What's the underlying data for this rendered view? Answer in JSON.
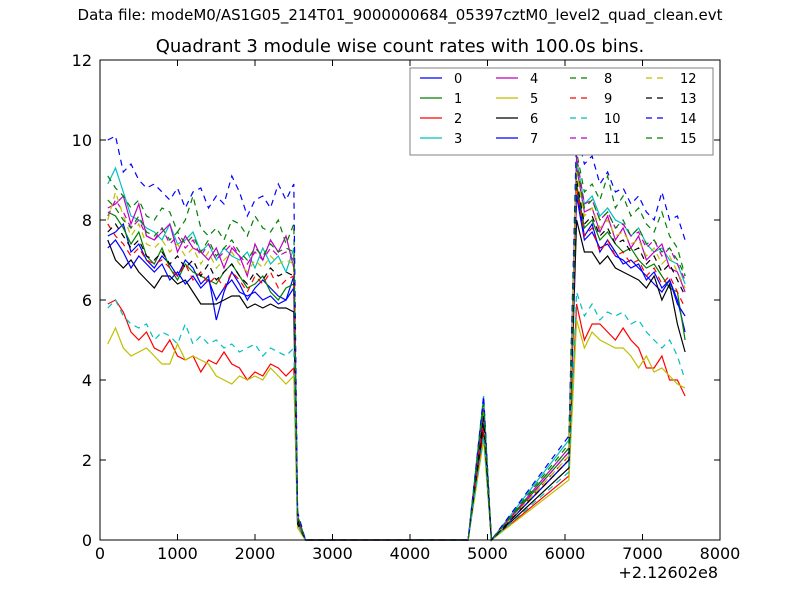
{
  "figure": {
    "suptitle": "Data file: modeM0/AS1G05_214T01_9000000684_05397cztM0_level2_quad_clean.evt",
    "title": "Quadrant 3 module wise count rates with 100.0s bins."
  },
  "chart_data": {
    "type": "line",
    "title": "Quadrant 3 module wise count rates with 100.0s bins.",
    "xlabel": "",
    "ylabel": "",
    "xlim": [
      0,
      8000
    ],
    "ylim": [
      0,
      12
    ],
    "x_offset_label": "+2.12602e8",
    "xticks": [
      0,
      1000,
      2000,
      3000,
      4000,
      5000,
      6000,
      7000,
      8000
    ],
    "yticks": [
      0,
      2,
      4,
      6,
      8,
      10,
      12
    ],
    "grid": false,
    "legend": {
      "placement": "top-right",
      "columns": 4
    },
    "x_segments": {
      "first": [
        100,
        200,
        300,
        400,
        500,
        600,
        700,
        800,
        900,
        1000,
        1100,
        1200,
        1300,
        1400,
        1500,
        1600,
        1700,
        1800,
        1900,
        2000,
        2100,
        2200,
        2300,
        2400,
        2500,
        2550,
        2650,
        2750
      ],
      "zero_to_peak": [
        2850,
        4750,
        4950,
        5050
      ],
      "second": [
        5050,
        6050,
        6150,
        6250,
        6350,
        6450,
        6550,
        6650,
        6750,
        6850,
        6950,
        7050,
        7150,
        7250,
        7350,
        7450,
        7550
      ]
    },
    "series": [
      {
        "name": "0",
        "color": "#0000ff",
        "dash": "solid",
        "first": [
          7.6,
          7.7,
          7.9,
          7.2,
          7.4,
          7.0,
          6.8,
          7.1,
          6.9,
          6.6,
          7.0,
          6.8,
          6.4,
          6.6,
          5.5,
          6.2,
          6.7,
          6.4,
          6.0,
          6.3,
          6.5,
          6.3,
          6.1,
          6.0,
          6.6,
          0.6,
          0.0,
          0.0
        ],
        "peak": 3.3,
        "second": [
          0.0,
          2.0,
          8.8,
          7.6,
          7.9,
          7.2,
          7.5,
          7.2,
          6.9,
          7.0,
          6.8,
          6.6,
          6.4,
          6.2,
          6.5,
          6.0,
          5.2
        ]
      },
      {
        "name": "1",
        "color": "#008000",
        "dash": "solid",
        "first": [
          8.2,
          8.1,
          7.8,
          7.4,
          7.7,
          7.1,
          6.9,
          7.3,
          6.8,
          6.5,
          6.9,
          6.7,
          6.6,
          6.5,
          6.4,
          6.7,
          6.9,
          6.6,
          6.3,
          6.4,
          6.6,
          6.2,
          6.0,
          6.3,
          6.4,
          0.5,
          0.0,
          0.0
        ],
        "peak": 3.0,
        "second": [
          0.0,
          2.2,
          8.9,
          7.8,
          8.0,
          7.5,
          7.7,
          7.4,
          7.2,
          7.3,
          7.0,
          6.8,
          6.9,
          6.6,
          6.3,
          6.2,
          5.0
        ]
      },
      {
        "name": "2",
        "color": "#ff0000",
        "dash": "solid",
        "first": [
          5.9,
          6.0,
          5.7,
          5.2,
          5.0,
          5.2,
          4.8,
          4.7,
          5.0,
          4.6,
          4.5,
          4.6,
          4.2,
          4.5,
          4.4,
          4.7,
          4.4,
          4.3,
          4.0,
          4.2,
          4.1,
          4.4,
          4.3,
          4.1,
          4.3,
          0.4,
          0.0,
          0.0
        ],
        "peak": 2.7,
        "second": [
          0.0,
          1.6,
          5.9,
          5.0,
          5.4,
          5.4,
          5.2,
          5.0,
          5.3,
          5.0,
          4.8,
          4.3,
          4.3,
          4.6,
          4.0,
          4.0,
          3.6
        ]
      },
      {
        "name": "3",
        "color": "#00bfbf",
        "dash": "solid",
        "first": [
          8.9,
          9.3,
          8.7,
          8.1,
          8.0,
          7.8,
          7.7,
          7.5,
          7.9,
          7.4,
          7.5,
          7.7,
          7.2,
          7.4,
          7.0,
          7.3,
          7.1,
          7.0,
          7.2,
          6.8,
          7.3,
          6.9,
          7.1,
          6.7,
          7.3,
          0.6,
          0.0,
          0.0
        ],
        "peak": 3.6,
        "second": [
          0.0,
          2.5,
          9.5,
          8.4,
          8.6,
          8.1,
          8.3,
          8.0,
          7.9,
          7.6,
          7.8,
          7.4,
          7.2,
          7.3,
          7.0,
          6.9,
          6.4
        ]
      },
      {
        "name": "4",
        "color": "#bf00bf",
        "dash": "solid",
        "first": [
          8.3,
          8.4,
          8.6,
          7.9,
          8.4,
          7.6,
          7.5,
          7.7,
          7.9,
          7.2,
          7.6,
          7.3,
          7.2,
          7.0,
          7.3,
          6.8,
          7.3,
          7.1,
          6.6,
          7.4,
          7.0,
          7.5,
          7.2,
          7.6,
          6.8,
          0.5,
          0.0,
          0.0
        ],
        "peak": 3.2,
        "second": [
          0.0,
          2.3,
          9.3,
          8.2,
          8.3,
          7.7,
          8.1,
          7.5,
          7.8,
          7.3,
          7.6,
          7.0,
          7.2,
          7.4,
          6.8,
          6.7,
          6.2
        ]
      },
      {
        "name": "5",
        "color": "#bfbf00",
        "dash": "solid",
        "first": [
          4.9,
          5.3,
          4.8,
          4.6,
          4.7,
          4.8,
          4.6,
          4.4,
          4.4,
          4.9,
          4.5,
          4.6,
          4.5,
          4.4,
          4.1,
          4.0,
          3.9,
          4.1,
          4.0,
          4.1,
          4.0,
          4.3,
          4.1,
          3.9,
          4.1,
          0.3,
          0.0,
          0.0
        ],
        "peak": 2.5,
        "second": [
          0.0,
          1.5,
          5.5,
          4.8,
          5.2,
          5.0,
          4.9,
          4.8,
          4.8,
          4.6,
          4.3,
          4.6,
          4.2,
          4.3,
          4.1,
          3.9,
          3.8
        ]
      },
      {
        "name": "6",
        "color": "#000000",
        "dash": "solid",
        "first": [
          7.5,
          7.0,
          6.8,
          7.0,
          6.7,
          6.5,
          6.3,
          6.6,
          6.6,
          6.4,
          6.5,
          6.2,
          5.9,
          5.9,
          5.9,
          6.0,
          6.1,
          6.1,
          5.8,
          5.9,
          5.8,
          5.9,
          5.8,
          5.8,
          5.7,
          0.4,
          0.0,
          0.0
        ],
        "peak": 2.9,
        "second": [
          0.0,
          1.8,
          8.0,
          7.2,
          7.2,
          6.9,
          7.1,
          6.8,
          6.7,
          6.6,
          6.5,
          6.3,
          6.6,
          6.0,
          6.4,
          5.4,
          4.7
        ]
      },
      {
        "name": "7",
        "color": "#0000ff",
        "dash": "solid",
        "first": [
          7.3,
          7.5,
          7.2,
          6.8,
          7.1,
          6.9,
          6.7,
          6.9,
          6.5,
          6.7,
          6.4,
          6.6,
          6.3,
          6.5,
          6.0,
          6.3,
          6.5,
          6.2,
          6.1,
          6.2,
          6.0,
          6.1,
          5.9,
          6.0,
          6.3,
          0.5,
          0.0,
          0.0
        ],
        "peak": 3.1,
        "second": [
          0.0,
          2.0,
          8.6,
          7.5,
          7.7,
          7.3,
          7.4,
          7.1,
          7.0,
          6.8,
          6.9,
          6.5,
          6.7,
          6.3,
          6.5,
          5.9,
          5.6
        ]
      },
      {
        "name": "8",
        "color": "#008000",
        "dash": "dashed",
        "first": [
          9.1,
          8.8,
          8.6,
          8.3,
          8.5,
          8.1,
          8.0,
          8.3,
          8.2,
          7.7,
          8.0,
          8.6,
          7.8,
          7.6,
          7.8,
          7.5,
          8.0,
          7.9,
          7.6,
          8.1,
          7.8,
          7.7,
          8.0,
          7.4,
          7.9,
          0.6,
          0.0,
          0.0
        ],
        "peak": 3.5,
        "second": [
          0.0,
          2.4,
          9.7,
          8.7,
          8.9,
          8.5,
          9.1,
          8.3,
          8.6,
          8.1,
          8.3,
          7.9,
          7.7,
          8.2,
          7.6,
          7.3,
          6.6
        ]
      },
      {
        "name": "9",
        "color": "#ff0000",
        "dash": "dashed",
        "first": [
          7.9,
          7.6,
          7.4,
          7.1,
          7.3,
          7.0,
          6.9,
          7.0,
          6.8,
          6.6,
          6.9,
          6.5,
          6.7,
          6.4,
          6.6,
          6.3,
          6.7,
          6.5,
          6.2,
          6.6,
          6.4,
          6.7,
          6.3,
          6.5,
          6.6,
          0.5,
          0.0,
          0.0
        ],
        "peak": 3.0,
        "second": [
          0.0,
          2.1,
          8.8,
          7.6,
          7.8,
          7.2,
          7.5,
          7.1,
          7.2,
          6.9,
          7.0,
          6.6,
          6.8,
          6.4,
          6.6,
          6.2,
          5.8
        ]
      },
      {
        "name": "10",
        "color": "#00bfbf",
        "dash": "dashed",
        "first": [
          5.8,
          6.0,
          5.6,
          5.4,
          5.3,
          5.4,
          5.0,
          5.2,
          5.1,
          4.9,
          5.4,
          4.9,
          5.1,
          4.9,
          5.0,
          4.8,
          4.9,
          4.7,
          4.8,
          4.9,
          4.6,
          4.8,
          4.7,
          4.6,
          4.8,
          0.4,
          0.0,
          0.0
        ],
        "peak": 2.6,
        "second": [
          0.0,
          1.7,
          6.2,
          5.6,
          5.9,
          5.5,
          5.7,
          5.6,
          5.7,
          5.4,
          5.5,
          5.2,
          5.0,
          4.8,
          5.0,
          4.6,
          4.0
        ]
      },
      {
        "name": "11",
        "color": "#bf00bf",
        "dash": "dashed",
        "first": [
          8.1,
          8.5,
          8.2,
          7.8,
          8.0,
          7.6,
          7.5,
          7.8,
          7.4,
          7.6,
          7.3,
          7.5,
          7.1,
          7.4,
          7.0,
          7.2,
          7.4,
          7.1,
          6.9,
          7.2,
          7.0,
          7.3,
          7.1,
          7.2,
          7.0,
          0.5,
          0.0,
          0.0
        ],
        "peak": 3.3,
        "second": [
          0.0,
          2.2,
          9.6,
          8.4,
          8.5,
          8.0,
          8.2,
          7.8,
          7.9,
          7.6,
          7.7,
          7.3,
          7.5,
          7.1,
          7.3,
          6.9,
          6.5
        ]
      },
      {
        "name": "12",
        "color": "#bfbf00",
        "dash": "dashed",
        "first": [
          8.0,
          8.7,
          8.1,
          7.6,
          7.9,
          7.4,
          7.3,
          7.5,
          7.2,
          7.4,
          7.1,
          7.3,
          6.9,
          7.2,
          6.8,
          7.0,
          7.2,
          6.9,
          6.7,
          7.0,
          6.8,
          7.1,
          6.9,
          7.0,
          6.9,
          0.5,
          0.0,
          0.0
        ],
        "peak": 3.2,
        "second": [
          0.0,
          2.1,
          9.2,
          8.1,
          8.3,
          7.8,
          8.0,
          7.6,
          7.7,
          7.4,
          7.5,
          7.1,
          7.3,
          6.9,
          7.1,
          6.7,
          6.3
        ]
      },
      {
        "name": "13",
        "color": "#000000",
        "dash": "dashed",
        "first": [
          7.7,
          7.9,
          7.6,
          7.3,
          7.5,
          7.1,
          7.0,
          7.2,
          6.9,
          7.1,
          6.8,
          7.0,
          6.6,
          6.9,
          6.5,
          6.7,
          6.9,
          6.6,
          6.4,
          6.7,
          6.5,
          6.8,
          6.6,
          6.7,
          6.6,
          0.5,
          0.0,
          0.0
        ],
        "peak": 3.1,
        "second": [
          0.0,
          2.0,
          9.0,
          7.9,
          8.1,
          7.6,
          7.8,
          7.4,
          7.5,
          7.2,
          7.3,
          6.9,
          7.1,
          6.7,
          6.9,
          6.5,
          6.1
        ]
      },
      {
        "name": "14",
        "color": "#0000ff",
        "dash": "dashed",
        "first": [
          10.0,
          10.1,
          9.2,
          9.4,
          9.0,
          8.8,
          8.9,
          8.7,
          8.5,
          8.8,
          8.3,
          8.7,
          8.8,
          8.3,
          8.6,
          8.4,
          9.1,
          8.7,
          8.1,
          8.5,
          8.6,
          8.3,
          8.9,
          8.5,
          8.9,
          0.7,
          0.0,
          0.0
        ],
        "peak": 3.6,
        "second": [
          0.0,
          2.6,
          10.2,
          9.4,
          9.6,
          8.9,
          9.2,
          8.7,
          8.8,
          8.4,
          8.6,
          8.2,
          8.0,
          8.7,
          8.0,
          8.1,
          7.5
        ]
      },
      {
        "name": "15",
        "color": "#008000",
        "dash": "dashed",
        "first": [
          8.5,
          8.3,
          8.0,
          7.8,
          8.1,
          7.7,
          7.6,
          7.8,
          7.5,
          7.7,
          7.4,
          7.6,
          7.2,
          7.5,
          7.1,
          7.3,
          7.5,
          7.2,
          7.0,
          7.3,
          7.1,
          7.4,
          7.2,
          7.3,
          7.2,
          0.6,
          0.0,
          0.0
        ],
        "peak": 3.4,
        "second": [
          0.0,
          2.3,
          9.4,
          8.3,
          8.5,
          8.0,
          8.2,
          7.8,
          8.0,
          7.6,
          7.8,
          7.4,
          7.5,
          7.2,
          7.3,
          7.0,
          6.6
        ]
      }
    ]
  }
}
